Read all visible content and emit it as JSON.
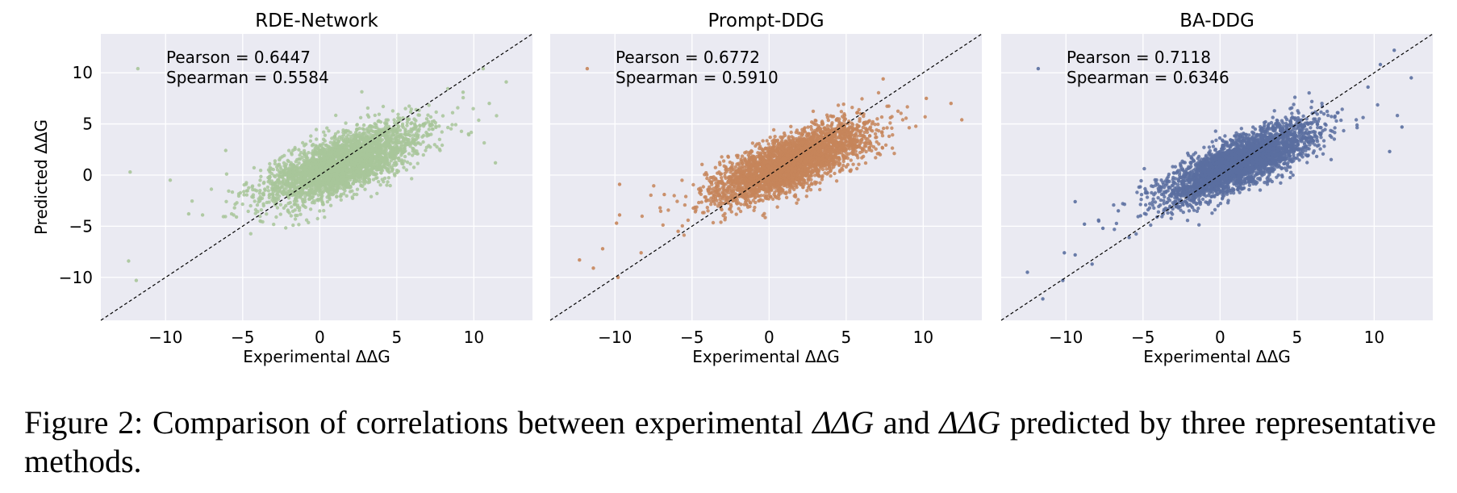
{
  "caption": {
    "label": "Figure 2:",
    "text_before": "Comparison of correlations between experimental",
    "symbol": "ΔΔG",
    "text_middle": "and",
    "text_after": "predicted by three representative methods."
  },
  "chart_data": [
    {
      "type": "scatter",
      "title": "RDE-Network",
      "xlabel": "Experimental ΔΔG",
      "ylabel": "Predicted ΔΔG",
      "xlim": [
        -14.2,
        13.8
      ],
      "ylim": [
        -14.2,
        13.8
      ],
      "xticks": [
        -10,
        -5,
        0,
        5,
        10
      ],
      "yticks": [
        10,
        5,
        0,
        -5,
        -10
      ],
      "xtick_labels": [
        "−10",
        "−5",
        "0",
        "5",
        "10"
      ],
      "ytick_labels": [
        "10",
        "5",
        "0",
        "−5",
        "−10"
      ],
      "color": "#a8c59a",
      "annotations": [
        "Pearson = 0.6447",
        "Spearman = 0.5584"
      ],
      "reference_line": "y = x",
      "grid": true,
      "background": "#eaeaf2",
      "cloud": {
        "n": 3400,
        "x_mean": 1.4,
        "x_sd": 2.3,
        "slope": 0.52,
        "intercept": 0.3,
        "noise_sd": 1.35
      },
      "outliers": [
        [
          -11.8,
          10.4
        ],
        [
          -12.3,
          0.3
        ],
        [
          -11.9,
          -10.3
        ],
        [
          -12.4,
          -8.4
        ],
        [
          -9.7,
          -0.5
        ],
        [
          -8.5,
          -3.8
        ],
        [
          -6.1,
          2.4
        ],
        [
          11.0,
          7.0
        ],
        [
          12.1,
          9.1
        ],
        [
          10.6,
          10.4
        ],
        [
          9.3,
          8.1
        ],
        [
          11.4,
          1.2
        ],
        [
          -5.4,
          -4.1
        ],
        [
          -7.6,
          -3.9
        ]
      ]
    },
    {
      "type": "scatter",
      "title": "Prompt-DDG",
      "xlabel": "Experimental ΔΔG",
      "ylabel": "",
      "xlim": [
        -14.2,
        13.8
      ],
      "ylim": [
        -14.2,
        13.8
      ],
      "xticks": [
        -10,
        -5,
        0,
        5,
        10
      ],
      "yticks": [
        10,
        5,
        0,
        -5,
        -10
      ],
      "xtick_labels": [
        "−10",
        "−5",
        "0",
        "5",
        "10"
      ],
      "ytick_labels": [],
      "color": "#c6855a",
      "annotations": [
        "Pearson = 0.6772",
        "Spearman = 0.5910"
      ],
      "reference_line": "y = x",
      "grid": true,
      "background": "#eaeaf2",
      "cloud": {
        "n": 3400,
        "x_mean": 1.4,
        "x_sd": 2.3,
        "slope": 0.56,
        "intercept": 0.4,
        "noise_sd": 1.25
      },
      "outliers": [
        [
          -11.8,
          10.4
        ],
        [
          -12.3,
          -8.3
        ],
        [
          -11.4,
          -9.1
        ],
        [
          -10.8,
          -7.2
        ],
        [
          -9.8,
          -10.0
        ],
        [
          -9.7,
          -3.9
        ],
        [
          -9.9,
          -4.7
        ],
        [
          -9.7,
          -0.9
        ],
        [
          -6.8,
          -1.9
        ],
        [
          12.5,
          5.4
        ],
        [
          11.8,
          7.0
        ],
        [
          7.4,
          9.4
        ],
        [
          10.2,
          7.5
        ],
        [
          -8.3,
          -7.6
        ],
        [
          -5.9,
          -5.5
        ]
      ]
    },
    {
      "type": "scatter",
      "title": "BA-DDG",
      "xlabel": "Experimental ΔΔG",
      "ylabel": "",
      "xlim": [
        -14.2,
        13.8
      ],
      "ylim": [
        -14.2,
        13.8
      ],
      "xticks": [
        -10,
        -5,
        0,
        5,
        10
      ],
      "yticks": [
        10,
        5,
        0,
        -5,
        -10
      ],
      "xtick_labels": [
        "−10",
        "−5",
        "0",
        "5",
        "10"
      ],
      "ytick_labels": [],
      "color": "#5a6fa0",
      "annotations": [
        "Pearson = 0.7118",
        "Spearman = 0.6346"
      ],
      "reference_line": "y = x",
      "grid": true,
      "background": "#eaeaf2",
      "cloud": {
        "n": 3400,
        "x_mean": 1.4,
        "x_sd": 2.3,
        "slope": 0.62,
        "intercept": 0.4,
        "noise_sd": 1.2
      },
      "outliers": [
        [
          -11.8,
          10.4
        ],
        [
          -12.5,
          -9.5
        ],
        [
          -11.5,
          -12.1
        ],
        [
          -10.2,
          -10.3
        ],
        [
          -10.1,
          -7.6
        ],
        [
          -9.4,
          -7.8
        ],
        [
          -8.3,
          -8.7
        ],
        [
          -7.6,
          -5.2
        ],
        [
          -8.8,
          -4.8
        ],
        [
          -5.9,
          -6.1
        ],
        [
          11.3,
          12.2
        ],
        [
          12.4,
          9.5
        ],
        [
          11.8,
          4.7
        ],
        [
          10.4,
          10.8
        ],
        [
          11.0,
          2.3
        ],
        [
          9.6,
          8.6
        ],
        [
          -6.6,
          -3.5
        ],
        [
          -9.4,
          -2.6
        ]
      ]
    }
  ]
}
